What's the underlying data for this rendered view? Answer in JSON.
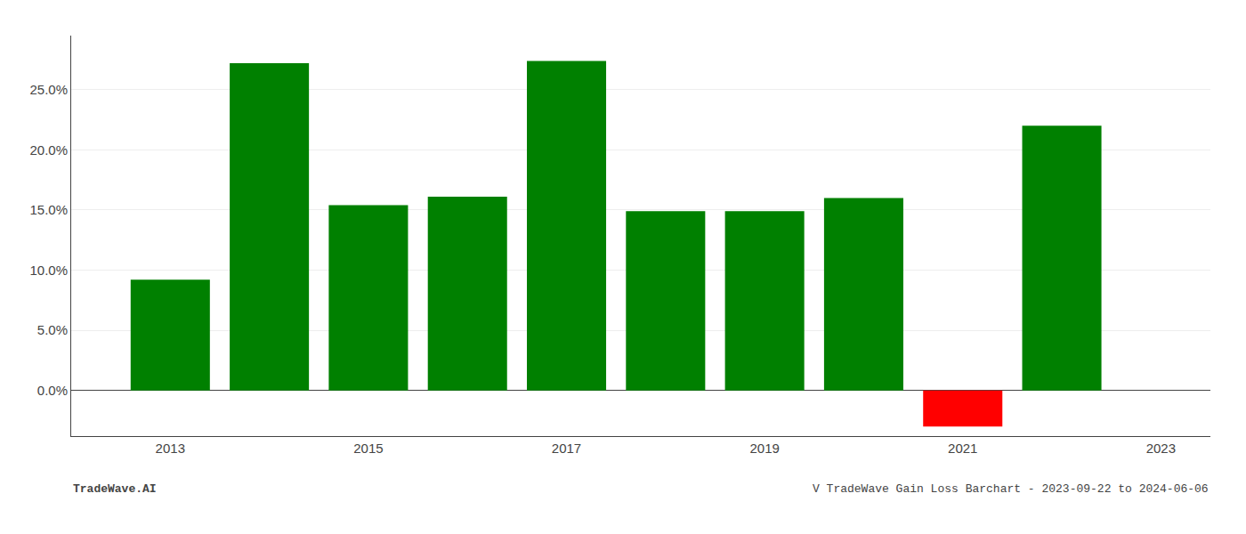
{
  "chart_data": {
    "type": "bar",
    "x": [
      2013,
      2014,
      2015,
      2016,
      2017,
      2018,
      2019,
      2020,
      2021,
      2022
    ],
    "values": [
      0.092,
      0.272,
      0.154,
      0.161,
      0.274,
      0.149,
      0.149,
      0.16,
      -0.03,
      0.22
    ],
    "colors": [
      "#008000",
      "#008000",
      "#008000",
      "#008000",
      "#008000",
      "#008000",
      "#008000",
      "#008000",
      "#ff0000",
      "#008000"
    ],
    "xlim": [
      2012.0,
      2023.5
    ],
    "xticks": [
      2013,
      2015,
      2017,
      2019,
      2021,
      2023
    ],
    "ylim": [
      -0.038,
      0.295
    ],
    "yticks": [
      {
        "value": 0.0,
        "label": "0.0%"
      },
      {
        "value": 0.05,
        "label": "5.0%"
      },
      {
        "value": 0.1,
        "label": "10.0%"
      },
      {
        "value": 0.15,
        "label": "15.0%"
      },
      {
        "value": 0.2,
        "label": "20.0%"
      },
      {
        "value": 0.25,
        "label": "25.0%"
      }
    ],
    "grid": true,
    "annotations": [
      "TradeWave.AI",
      "V TradeWave Gain Loss Barchart - 2023-09-22 to 2024-06-06"
    ]
  }
}
